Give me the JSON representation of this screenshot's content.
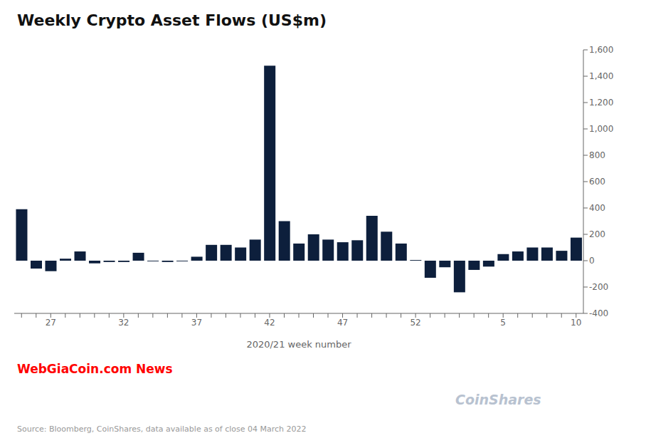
{
  "chart_data": {
    "type": "bar",
    "title": "Weekly Crypto Asset Flows (US$m)",
    "x_label": "2020/21 week number",
    "annotations": [
      "WebGiaCoin.com News",
      "Source: Bloomberg, CoinShares, data available as of close 04 March 2022",
      "CoinShares"
    ],
    "categories": [
      null,
      null,
      "27",
      null,
      null,
      null,
      null,
      "32",
      null,
      null,
      null,
      null,
      "37",
      null,
      null,
      null,
      null,
      "42",
      null,
      null,
      null,
      null,
      "47",
      null,
      null,
      null,
      null,
      "52",
      null,
      null,
      null,
      null,
      null,
      "5",
      null,
      null,
      null,
      null,
      "10"
    ],
    "values": [
      390,
      -60,
      -80,
      15,
      70,
      -20,
      -10,
      -10,
      60,
      -5,
      -10,
      -5,
      30,
      120,
      120,
      100,
      160,
      1480,
      300,
      130,
      200,
      160,
      140,
      155,
      340,
      220,
      130,
      5,
      -130,
      -50,
      -240,
      -70,
      -45,
      50,
      70,
      100,
      100,
      75,
      175
    ],
    "color": "#0d1f3c",
    "ylim": [
      -400,
      1600
    ],
    "yticks": [
      -400,
      -200,
      0,
      200,
      400,
      600,
      800,
      {
        "value": 1000,
        "label": "1,000"
      },
      {
        "value": 1200,
        "label": "1,200"
      },
      {
        "value": 1400,
        "label": "1,400"
      },
      {
        "value": 1600,
        "label": "1,600"
      }
    ],
    "grid": false
  }
}
